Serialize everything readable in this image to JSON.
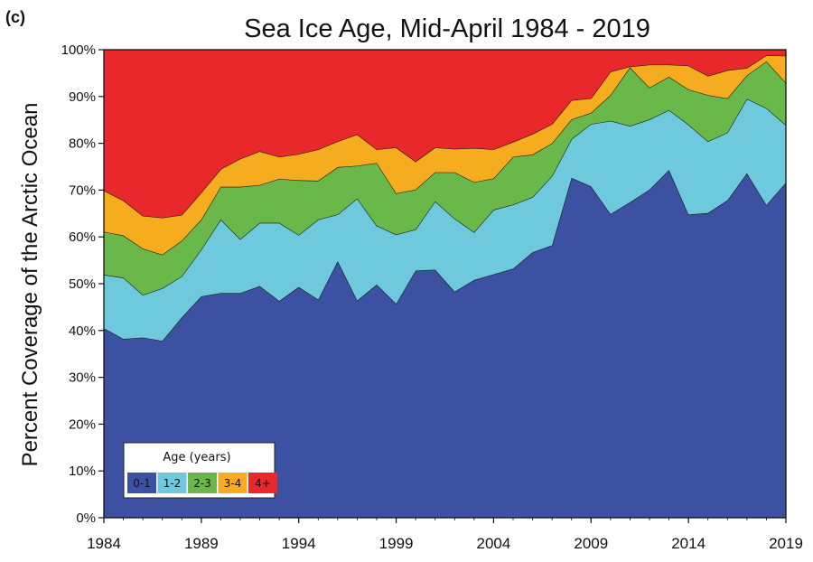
{
  "panel_label": "(c)",
  "chart_data": {
    "type": "area",
    "title": "Sea Ice Age, Mid-April 1984 - 2019",
    "ylabel": "Percent Coverage of the Arctic Ocean",
    "xlabel": "",
    "stacked": true,
    "xlim": [
      1984,
      2019
    ],
    "ylim": [
      0,
      100
    ],
    "x_ticks": [
      "1984",
      "1989",
      "1994",
      "1999",
      "2004",
      "2009",
      "2014",
      "2019"
    ],
    "y_ticks": [
      "0%",
      "10%",
      "20%",
      "30%",
      "40%",
      "50%",
      "60%",
      "70%",
      "80%",
      "90%",
      "100%"
    ],
    "x": [
      1984,
      1985,
      1986,
      1987,
      1988,
      1989,
      1990,
      1991,
      1992,
      1993,
      1994,
      1995,
      1996,
      1997,
      1998,
      1999,
      2000,
      2001,
      2002,
      2003,
      2004,
      2005,
      2006,
      2007,
      2008,
      2009,
      2010,
      2011,
      2012,
      2013,
      2014,
      2015,
      2016,
      2017,
      2018,
      2019
    ],
    "legend": {
      "title": "Age (years)",
      "position": "bottom-left"
    },
    "series": [
      {
        "name": "0-1",
        "color": "#3c51a1",
        "values": [
          40.5,
          38.2,
          38.5,
          37.8,
          42.8,
          47.3,
          48.0,
          48.0,
          49.5,
          46.3,
          49.3,
          46.6,
          54.8,
          46.4,
          49.8,
          45.7,
          52.8,
          53.0,
          48.3,
          50.8,
          52.0,
          53.2,
          56.7,
          58.2,
          72.6,
          70.8,
          64.9,
          67.4,
          70.1,
          74.3,
          64.8,
          65.1,
          67.8,
          73.6,
          66.8,
          71.6
        ]
      },
      {
        "name": "1-2",
        "color": "#6ec9dc",
        "values": [
          11.4,
          13.1,
          9.1,
          11.2,
          8.8,
          10.0,
          15.7,
          11.5,
          13.5,
          16.7,
          11.1,
          17.1,
          10.0,
          21.8,
          12.6,
          14.8,
          8.8,
          14.6,
          15.6,
          10.2,
          13.8,
          13.7,
          11.8,
          14.8,
          8.3,
          13.3,
          19.9,
          16.3,
          15.0,
          12.8,
          19.2,
          15.3,
          14.5,
          15.9,
          20.7,
          12.3
        ]
      },
      {
        "name": "2-3",
        "color": "#6ab84a",
        "values": [
          9.2,
          9.0,
          9.9,
          7.2,
          7.6,
          6.4,
          7.0,
          11.2,
          8.1,
          9.4,
          11.7,
          8.3,
          10.1,
          7.0,
          13.4,
          8.8,
          8.5,
          6.2,
          9.9,
          10.7,
          6.7,
          10.2,
          9.1,
          7.0,
          4.2,
          2.4,
          5.5,
          12.5,
          6.8,
          7.1,
          7.5,
          9.9,
          7.3,
          5.0,
          10.0,
          9.0
        ]
      },
      {
        "name": "3-4",
        "color": "#f6ac1f",
        "values": [
          8.8,
          7.5,
          7.0,
          7.9,
          5.5,
          5.8,
          3.8,
          6.0,
          7.2,
          4.7,
          5.6,
          6.7,
          5.5,
          6.7,
          2.9,
          9.8,
          6.0,
          5.3,
          5.0,
          7.3,
          6.2,
          3.2,
          4.4,
          4.1,
          4.1,
          3.1,
          5.0,
          0.2,
          4.9,
          2.6,
          5.1,
          4.1,
          6.0,
          1.6,
          1.3,
          5.8
        ]
      },
      {
        "name": "4+",
        "color": "#e8282a",
        "values": [
          30.1,
          32.2,
          35.5,
          35.9,
          35.3,
          30.5,
          25.5,
          23.3,
          21.7,
          22.9,
          22.3,
          21.3,
          19.6,
          18.1,
          21.3,
          20.9,
          23.9,
          20.9,
          21.2,
          21.0,
          21.3,
          19.7,
          18.0,
          15.9,
          10.8,
          10.4,
          4.7,
          3.6,
          3.2,
          3.2,
          3.4,
          5.6,
          4.4,
          3.9,
          1.2,
          1.3
        ]
      }
    ]
  }
}
